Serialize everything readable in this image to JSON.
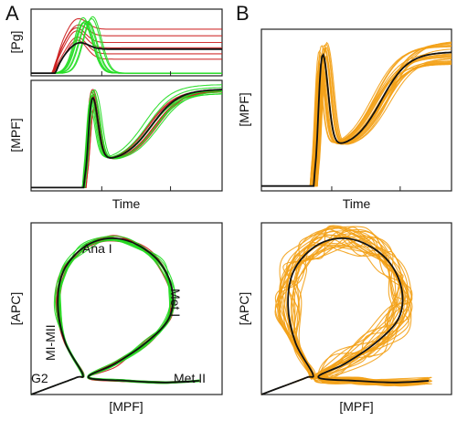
{
  "figure": {
    "panel_a_letter": "A",
    "panel_b_letter": "B"
  },
  "colors": {
    "red": "#cc1c1c",
    "green": "#22dd22",
    "orange": "#f3a117",
    "mean": "#111111"
  },
  "chart_data": [
    {
      "id": "A1",
      "type": "line",
      "ylabel": "[Pg]",
      "xlabel": "",
      "xlim": [
        0,
        1
      ],
      "ylim": [
        0,
        1
      ],
      "xticks": [
        0.37,
        0.73
      ],
      "grid": false,
      "series": [
        {
          "color": "red",
          "kind": "plateau",
          "level": 0.7,
          "peak": 0.9,
          "count": 1
        },
        {
          "color": "red",
          "kind": "plateau",
          "level": 0.6,
          "peak": 0.8,
          "count": 1
        },
        {
          "color": "red",
          "kind": "plateau",
          "level": 0.5,
          "peak": 0.75,
          "count": 1
        },
        {
          "color": "red",
          "kind": "plateau",
          "level": 0.42,
          "peak": 0.7,
          "count": 1
        },
        {
          "color": "red",
          "kind": "plateau",
          "level": 0.33,
          "peak": 0.6,
          "count": 1
        },
        {
          "color": "red",
          "kind": "plateau",
          "level": 0.25,
          "peak": 0.55,
          "count": 1
        },
        {
          "color": "green",
          "kind": "transient",
          "peak": 0.9,
          "count": 8
        },
        {
          "color": "mean",
          "kind": "plateau",
          "level": 0.4,
          "peak": 0.52,
          "count": 1
        }
      ]
    },
    {
      "id": "A2",
      "type": "line",
      "ylabel": "[MPF]",
      "xlabel": "Time",
      "xlim": [
        0,
        1
      ],
      "ylim": [
        0,
        1
      ],
      "xticks": [
        0.37,
        0.73
      ],
      "grid": false,
      "series": [
        {
          "color": "red",
          "kind": "response",
          "count": 6
        },
        {
          "color": "green",
          "kind": "response",
          "count": 8
        },
        {
          "color": "mean",
          "kind": "response",
          "count": 1
        }
      ]
    },
    {
      "id": "B1",
      "type": "line",
      "ylabel": "[MPF]",
      "xlabel": "Time",
      "xlim": [
        0,
        1
      ],
      "ylim": [
        0,
        1
      ],
      "xticks": [
        0.37,
        0.73
      ],
      "grid": false,
      "series": [
        {
          "color": "orange",
          "kind": "response",
          "count": 24
        },
        {
          "color": "mean",
          "kind": "response",
          "count": 1
        }
      ]
    },
    {
      "id": "A3",
      "type": "line",
      "ylabel": "[APC]",
      "xlabel": "[MPF]",
      "xlim": [
        0,
        1
      ],
      "ylim": [
        0,
        1
      ],
      "grid": false,
      "annotations": [
        "Ana I",
        "Met I",
        "MI-MII",
        "G2",
        "Met II"
      ],
      "series": [
        {
          "color": "red",
          "kind": "loop",
          "count": 6
        },
        {
          "color": "green",
          "kind": "loop",
          "count": 8
        },
        {
          "color": "mean",
          "kind": "loop",
          "count": 1
        }
      ]
    },
    {
      "id": "B2",
      "type": "line",
      "ylabel": "[APC]",
      "xlabel": "[MPF]",
      "xlim": [
        0,
        1
      ],
      "ylim": [
        0,
        1
      ],
      "grid": false,
      "series": [
        {
          "color": "orange",
          "kind": "loop",
          "count": 24
        },
        {
          "color": "mean",
          "kind": "loop",
          "count": 1
        }
      ]
    }
  ]
}
